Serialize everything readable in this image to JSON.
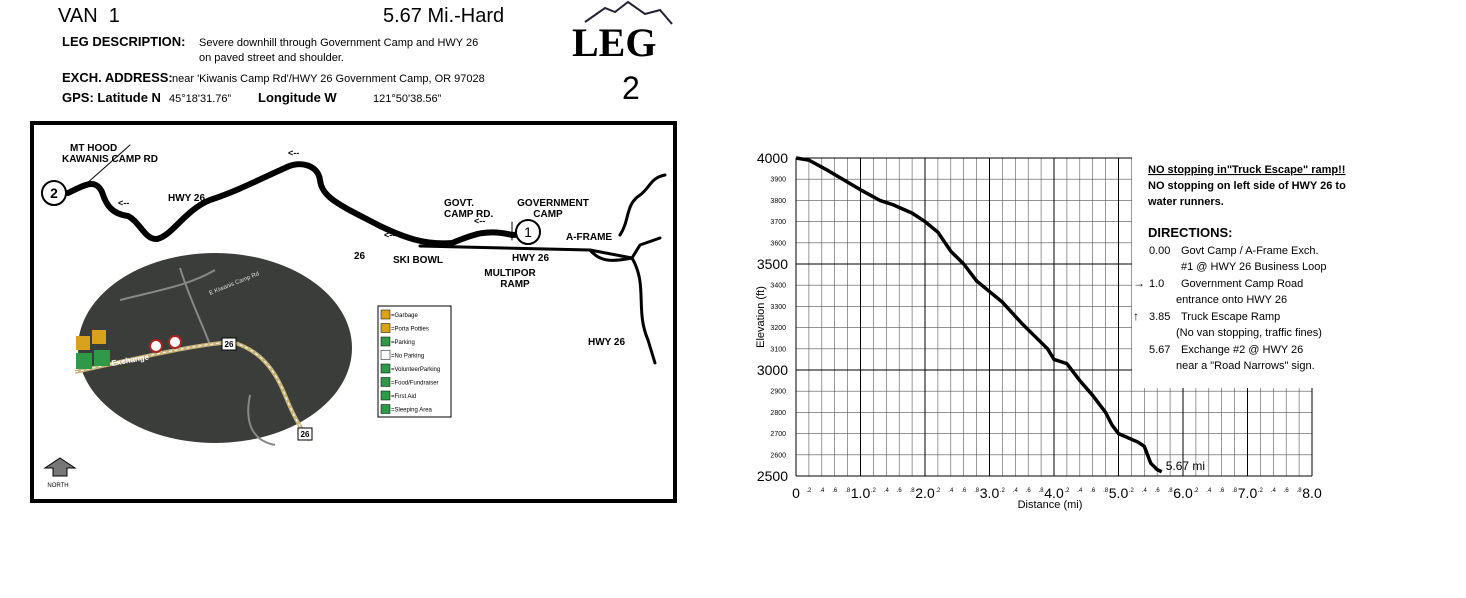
{
  "header": {
    "van": "VAN  1",
    "distance_difficulty": "5.67 Mi.-Hard",
    "logo": "LEG",
    "leg_number": "2"
  },
  "description": {
    "label": "LEG DESCRIPTION:",
    "lines": [
      "Severe downhill through Government Camp and HWY 26",
      "on paved street and shoulder."
    ]
  },
  "exchange": {
    "label": "EXCH. ADDRESS:",
    "text": "near 'Kiwanis Camp Rd'/HWY 26 Government Camp, OR 97028"
  },
  "gps": {
    "lat_label": "GPS: Latitude N",
    "lat": "45°18'31.76”",
    "lon_label": "Longitude W",
    "lon": "121°50'38.56”"
  },
  "map": {
    "labels": {
      "mt_hood": "MT HOOD",
      "kawanis": "KAWANIS CAMP RD",
      "hwy_west": "HWY 26",
      "arrow_1": "<--",
      "arrow_2": "<--",
      "arrow_3": "<--",
      "arrow_4": "<--",
      "govt_camp_rd": [
        "GOVT.",
        "CAMP RD."
      ],
      "government_camp": [
        "GOVERNMENT",
        "CAMP"
      ],
      "a_frame": "A-FRAME",
      "hwy_mid": "HWY 26",
      "shield": "26",
      "ski_bowl": "SKI BOWL",
      "multipor": [
        "MULTIPOR",
        "RAMP"
      ],
      "hwy_east": "HWY 26",
      "exchange_1": "1",
      "exchange_2": "2",
      "north": "NORTH",
      "aerial_exchange": "Exchange",
      "aerial_road": "E Kiwanis Camp Rd",
      "aerial_shield_1": "26",
      "aerial_shield_2": "26"
    },
    "legend": [
      "=Garbage",
      "=Porta Potties",
      "=Parking",
      "=No Parking",
      "=VolunteerParking",
      "=Food/Fundraiser",
      "=First Aid",
      "=Sleeping Area"
    ]
  },
  "chart_data": {
    "type": "line",
    "ylabel": "Elevation (ft)",
    "xlabel": "Distance (mi)",
    "end_label": "5.67 mi",
    "color": "#000000",
    "grid": true,
    "x": [
      0,
      0.2,
      0.5,
      1.0,
      1.3,
      1.5,
      1.8,
      2.0,
      2.2,
      2.4,
      2.6,
      2.8,
      3.0,
      3.2,
      3.5,
      3.8,
      3.9,
      4.0,
      4.2,
      4.4,
      4.6,
      4.8,
      4.9,
      5.0,
      5.3,
      5.4,
      5.5,
      5.6,
      5.67
    ],
    "values": [
      4000,
      3990,
      3940,
      3850,
      3800,
      3780,
      3740,
      3700,
      3650,
      3560,
      3500,
      3420,
      3370,
      3320,
      3220,
      3130,
      3100,
      3050,
      3030,
      2950,
      2880,
      2800,
      2740,
      2700,
      2660,
      2640,
      2560,
      2530,
      2520
    ],
    "xlim": [
      0,
      8
    ],
    "ylim": [
      2500,
      4000
    ],
    "xticks": [
      0,
      {
        "value": 1,
        "label": "1.0"
      },
      {
        "value": 2,
        "label": "2.0"
      },
      {
        "value": 3,
        "label": "3.0"
      },
      {
        "value": 4,
        "label": "4.0"
      },
      {
        "value": 5,
        "label": "5.0"
      },
      {
        "value": 6,
        "label": "6.0"
      },
      {
        "value": 7,
        "label": "7.0"
      },
      {
        "value": 8,
        "label": "8.0"
      }
    ],
    "xminorticks": [
      {
        "value": 0.2,
        "label": ".2"
      },
      {
        "value": 0.4,
        "label": ".4"
      },
      {
        "value": 0.6,
        "label": ".6"
      },
      {
        "value": 0.8,
        "label": ".8"
      },
      {
        "value": 1.2,
        "label": ".2"
      },
      {
        "value": 1.4,
        "label": ".4"
      },
      {
        "value": 1.6,
        "label": ".6"
      },
      {
        "value": 1.8,
        "label": ".8"
      },
      {
        "value": 2.2,
        "label": ".2"
      },
      {
        "value": 2.4,
        "label": ".4"
      },
      {
        "value": 2.6,
        "label": ".6"
      },
      {
        "value": 2.8,
        "label": ".8"
      },
      {
        "value": 3.2,
        "label": ".2"
      },
      {
        "value": 3.4,
        "label": ".4"
      },
      {
        "value": 3.6,
        "label": ".6"
      },
      {
        "value": 3.8,
        "label": ".8"
      },
      {
        "value": 4.2,
        "label": ".2"
      },
      {
        "value": 4.4,
        "label": ".4"
      },
      {
        "value": 4.6,
        "label": ".6"
      },
      {
        "value": 4.8,
        "label": ".8"
      },
      {
        "value": 5.2,
        "label": ".2"
      },
      {
        "value": 5.4,
        "label": ".4"
      },
      {
        "value": 5.6,
        "label": ".6"
      },
      {
        "value": 5.8,
        "label": ".8"
      },
      {
        "value": 6.2,
        "label": ".2"
      },
      {
        "value": 6.4,
        "label": ".4"
      },
      {
        "value": 6.6,
        "label": ".6"
      },
      {
        "value": 6.8,
        "label": ".8"
      },
      {
        "value": 7.2,
        "label": ".2"
      },
      {
        "value": 7.4,
        "label": ".4"
      },
      {
        "value": 7.6,
        "label": ".6"
      },
      {
        "value": 7.8,
        "label": ".8"
      }
    ],
    "yticks": [
      2500,
      3000,
      3500,
      4000
    ],
    "yminorticks": [
      2600,
      2700,
      2800,
      2900,
      3100,
      3200,
      3300,
      3400,
      3600,
      3700,
      3800,
      3900
    ]
  },
  "notes": {
    "warning": "NO stopping in\"Truck Escape\" ramp!!",
    "lines": [
      "NO stopping on left side of HWY 26 to",
      "water runners."
    ]
  },
  "directions": {
    "title": "DIRECTIONS:",
    "items": [
      {
        "mile": "0.00",
        "lines": [
          "Govt Camp / A-Frame Exch.",
          "#1 @ HWY 26 Business Loop"
        ]
      },
      {
        "marker": "→",
        "mile": "1.0",
        "lines": [
          "Government Camp Road",
          "entrance onto HWY 26"
        ]
      },
      {
        "marker": "↑",
        "mile": "3.85",
        "lines": [
          "Truck Escape Ramp",
          "(No van stopping, traffic fines)"
        ]
      },
      {
        "mile": "5.67",
        "lines": [
          "Exchange #2 @ HWY 26",
          "near a \"Road Narrows\" sign."
        ]
      }
    ]
  }
}
